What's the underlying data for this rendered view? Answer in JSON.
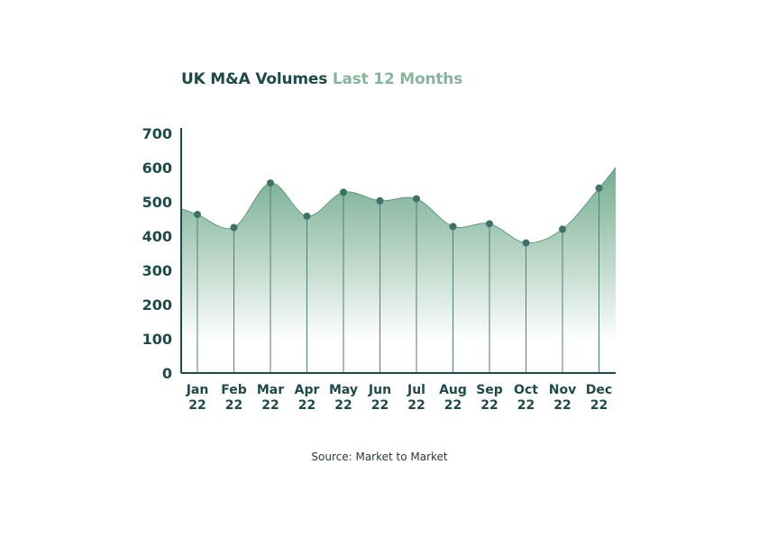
{
  "title": "UK M&A Volumes",
  "subtitle": "Last 12 Months",
  "source": "Source: Market to Market",
  "colors": {
    "dark": "#1f4a4a",
    "accent": "#86b59e",
    "area": "#6ea88b"
  },
  "chart_data": {
    "type": "area",
    "title": "UK M&A Volumes",
    "subtitle": "Last 12 Months",
    "categories": [
      [
        "Jan",
        "22"
      ],
      [
        "Feb",
        "22"
      ],
      [
        "Mar",
        "22"
      ],
      [
        "Apr",
        "22"
      ],
      [
        "May",
        "22"
      ],
      [
        "Jun",
        "22"
      ],
      [
        "Jul",
        "22"
      ],
      [
        "Aug",
        "22"
      ],
      [
        "Sep",
        "22"
      ],
      [
        "Oct",
        "22"
      ],
      [
        "Nov",
        "22"
      ],
      [
        "Dec",
        "22"
      ]
    ],
    "values": [
      463,
      425,
      555,
      458,
      528,
      503,
      509,
      428,
      436,
      380,
      420,
      540
    ],
    "line_start": 480,
    "line_end": 600,
    "ylim": [
      0,
      700
    ],
    "yticks": [
      "0",
      "100",
      "200",
      "300",
      "400",
      "500",
      "600",
      "700"
    ],
    "grid": false,
    "legend": "none"
  }
}
